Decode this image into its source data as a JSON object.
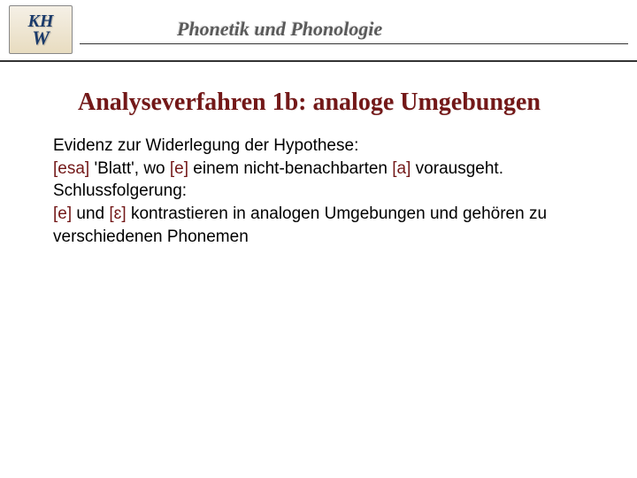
{
  "header": {
    "logo_top": "KH",
    "logo_bottom": "W",
    "title": "Phonetik und Phonologie"
  },
  "slide": {
    "title": "Analyseverfahren 1b: analoge Umgebungen",
    "line1": "Evidenz zur Widerlegung der Hypothese:",
    "ipa_esa": "[esa]",
    "line2a": " 'Blatt', wo ",
    "ipa_e1": "[e]",
    "line2b": " einem nicht-benachbarten ",
    "ipa_a": "[a]",
    "line2c": " vorausgeht.",
    "line3": "Schlussfolgerung:",
    "ipa_e2": "[e]",
    "line4a": " und ",
    "ipa_eps": "[ɛ]",
    "line4b": " kontrastieren in analogen Umgebungen und gehören zu verschiedenen Phonemen"
  },
  "colors": {
    "title_color": "#731818",
    "ipa_color": "#731818",
    "text_color": "#000000",
    "background": "#ffffff",
    "logo_text": "#1a3a6a"
  },
  "typography": {
    "title_fontsize": 28,
    "body_fontsize": 19,
    "header_fontsize": 22
  }
}
